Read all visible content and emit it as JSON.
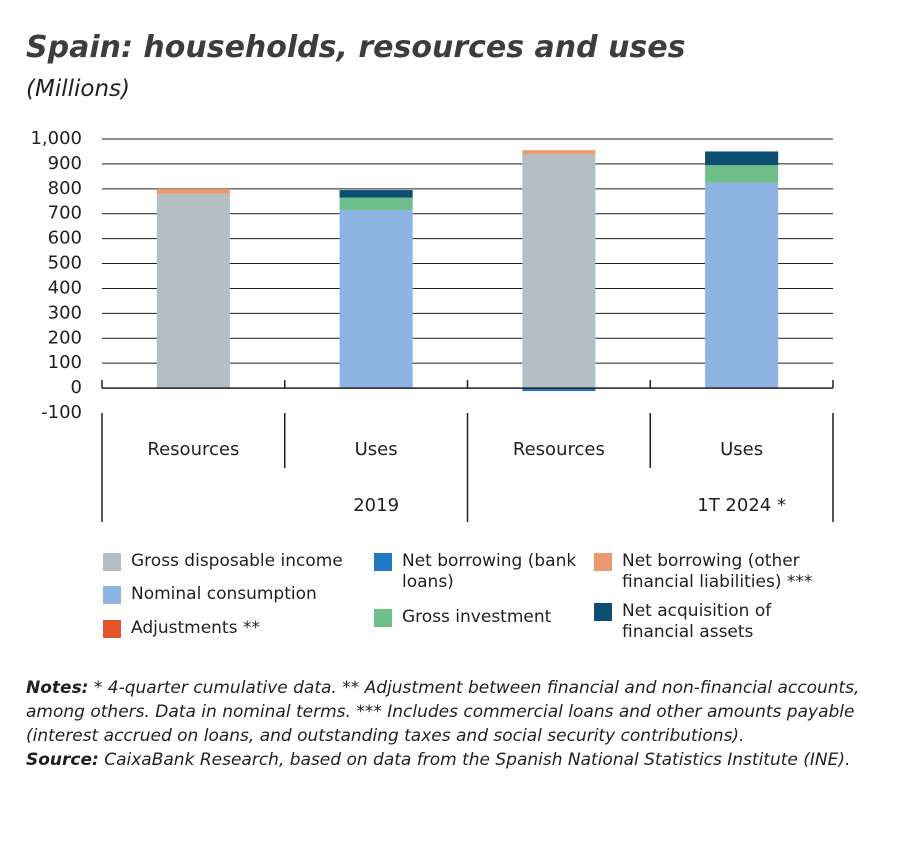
{
  "chart_data": {
    "type": "stacked-bar",
    "title": "Spain: households, resources and uses",
    "subtitle": "(Millions)",
    "categories": [
      "Resources",
      "Uses",
      "Resources",
      "Uses"
    ],
    "groups": [
      "2019",
      "1T 2024 *"
    ],
    "series": [
      {
        "name": "Gross disposable income",
        "color": "#b3bfc4",
        "values": [
          780,
          0,
          940,
          0
        ]
      },
      {
        "name": "Nominal consumption",
        "color": "#8eb4e3",
        "values": [
          0,
          715,
          0,
          825
        ]
      },
      {
        "name": "Adjustments **",
        "color": "#e5532a",
        "values": [
          0,
          0,
          0,
          0
        ]
      },
      {
        "name": "Net borrowing (bank loans)",
        "color": "#1f78c1",
        "values": [
          0,
          0,
          -12,
          0
        ]
      },
      {
        "name": "Gross investment",
        "color": "#6fbf8a",
        "values": [
          0,
          50,
          0,
          70
        ]
      },
      {
        "name": "Net borrowing (other financial liabilities) ***",
        "color": "#eb9a6f",
        "values": [
          20,
          0,
          15,
          0
        ]
      },
      {
        "name": "Net acquisition of financial assets",
        "color": "#0c4f72",
        "values": [
          0,
          30,
          0,
          55
        ]
      }
    ],
    "ylim": [
      -100,
      1000
    ],
    "yticks": [
      -100,
      0,
      100,
      200,
      300,
      400,
      500,
      600,
      700,
      800,
      900,
      {
        "value": 1000,
        "label": "1,000"
      }
    ],
    "grid": true,
    "notes": {
      "label": "Notes:",
      "text": " * 4-quarter cumulative data. ** Adjustment between financial and non-financial accounts, among others. Data in nominal terms. *** Includes commercial loans and other amounts payable (interest accrued on loans, and outstanding taxes and social security contributions)."
    },
    "source": {
      "label": "Source:",
      "text": " CaixaBank Research, based on data from the Spanish National Statistics Institute (INE)."
    }
  }
}
